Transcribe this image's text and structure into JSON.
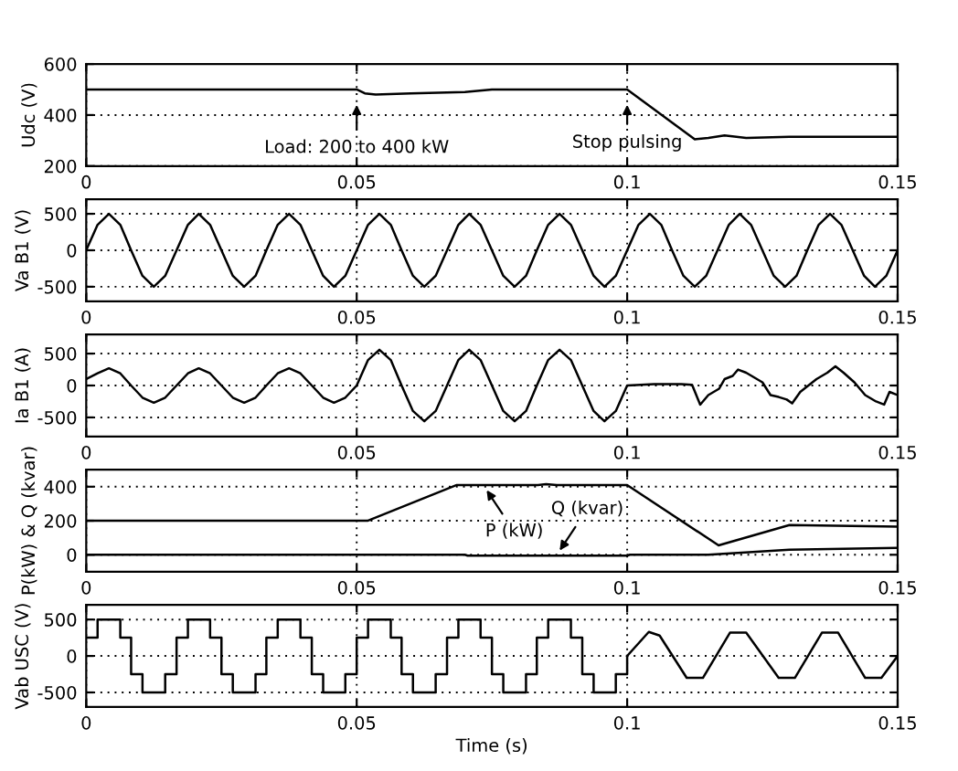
{
  "chart_data": [
    {
      "type": "line",
      "ylabel": "Udc (V)",
      "xlim": [
        0,
        0.15
      ],
      "xticks": [
        0,
        0.05,
        0.1,
        0.15
      ],
      "ylim": [
        200,
        600
      ],
      "yticks": [
        200,
        400,
        600
      ],
      "grid": true,
      "series": [
        {
          "color": "#000000",
          "x": [
            0,
            0.05,
            0.0515,
            0.0535,
            0.06,
            0.07,
            0.075,
            0.1,
            0.1125,
            0.115,
            0.118,
            0.122,
            0.13,
            0.15
          ],
          "values": [
            500,
            500,
            485,
            480,
            485,
            490,
            500,
            500,
            305,
            310,
            320,
            310,
            315,
            315
          ]
        }
      ],
      "annotations": [
        {
          "text": "Load: 200 to 400 kW",
          "x": 0.05,
          "y": 460
        },
        {
          "text": "Stop pulsing",
          "x": 0.1,
          "y": 460
        }
      ]
    },
    {
      "type": "line",
      "ylabel": "Va B1 (V)",
      "xlim": [
        0,
        0.15
      ],
      "xticks": [
        0,
        0.05,
        0.1,
        0.15
      ],
      "ylim": [
        -700,
        700
      ],
      "yticks": [
        -500,
        0,
        500
      ],
      "grid": true,
      "series": [
        {
          "color": "#000000",
          "x": [
            0,
            0.0021,
            0.0042,
            0.0063,
            0.0083,
            0.0104,
            0.0125,
            0.0146,
            0.0167,
            0.0188,
            0.0208,
            0.0229,
            0.025,
            0.0271,
            0.0292,
            0.0313,
            0.0333,
            0.0354,
            0.0375,
            0.0396,
            0.0417,
            0.0438,
            0.0458,
            0.0479,
            0.05,
            0.0521,
            0.0542,
            0.0563,
            0.0583,
            0.0604,
            0.0625,
            0.0646,
            0.0667,
            0.0688,
            0.0708,
            0.0729,
            0.075,
            0.0771,
            0.0792,
            0.0813,
            0.0833,
            0.0854,
            0.0875,
            0.0896,
            0.0917,
            0.0938,
            0.0958,
            0.0979,
            0.1,
            0.1021,
            0.1042,
            0.1063,
            0.1083,
            0.1104,
            0.1125,
            0.1146,
            0.1167,
            0.1188,
            0.1208,
            0.1229,
            0.125,
            0.1271,
            0.1292,
            0.1313,
            0.1333,
            0.1354,
            0.1375,
            0.1396,
            0.1417,
            0.1438,
            0.1458,
            0.1479,
            0.15
          ],
          "values": [
            0,
            350,
            500,
            350,
            0,
            -350,
            -500,
            -350,
            0,
            350,
            500,
            350,
            0,
            -350,
            -500,
            -350,
            0,
            350,
            500,
            350,
            0,
            -350,
            -500,
            -350,
            0,
            350,
            500,
            350,
            0,
            -350,
            -500,
            -350,
            0,
            350,
            500,
            350,
            0,
            -350,
            -500,
            -350,
            0,
            350,
            500,
            350,
            0,
            -350,
            -500,
            -350,
            0,
            350,
            500,
            350,
            0,
            -350,
            -500,
            -350,
            0,
            350,
            500,
            350,
            0,
            -350,
            -500,
            -350,
            0,
            350,
            500,
            350,
            0,
            -350,
            -500,
            -350,
            0
          ]
        }
      ]
    },
    {
      "type": "line",
      "ylabel": "Ia B1 (A)",
      "xlim": [
        0,
        0.15
      ],
      "xticks": [
        0,
        0.05,
        0.1,
        0.15
      ],
      "ylim": [
        -800,
        800
      ],
      "yticks": [
        -500,
        0,
        500
      ],
      "grid": true,
      "series": [
        {
          "color": "#000000",
          "x": [
            0,
            0.0021,
            0.0042,
            0.0063,
            0.0083,
            0.0104,
            0.0125,
            0.0146,
            0.0167,
            0.0188,
            0.0208,
            0.0229,
            0.025,
            0.0271,
            0.0292,
            0.0313,
            0.0333,
            0.0354,
            0.0375,
            0.0396,
            0.0417,
            0.0438,
            0.0458,
            0.0479,
            0.05,
            0.0521,
            0.0542,
            0.0563,
            0.0583,
            0.0604,
            0.0625,
            0.0646,
            0.0667,
            0.0688,
            0.0708,
            0.0729,
            0.075,
            0.0771,
            0.0792,
            0.0813,
            0.0833,
            0.0854,
            0.0875,
            0.0896,
            0.0917,
            0.0938,
            0.0958,
            0.0979,
            0.1,
            0.105,
            0.11,
            0.112,
            0.1135,
            0.115,
            0.117,
            0.118,
            0.1195,
            0.1205,
            0.122,
            0.123,
            0.125,
            0.1265,
            0.128,
            0.1295,
            0.1305,
            0.132,
            0.1335,
            0.135,
            0.137,
            0.1385,
            0.14,
            0.142,
            0.144,
            0.146,
            0.1475,
            0.1485,
            0.15
          ],
          "values": [
            100,
            190,
            270,
            190,
            0,
            -190,
            -270,
            -190,
            0,
            190,
            270,
            190,
            0,
            -190,
            -270,
            -190,
            0,
            190,
            270,
            190,
            0,
            -190,
            -270,
            -190,
            0,
            400,
            560,
            400,
            0,
            -400,
            -560,
            -400,
            0,
            400,
            560,
            400,
            0,
            -400,
            -560,
            -400,
            0,
            400,
            560,
            400,
            0,
            -400,
            -560,
            -400,
            0,
            20,
            20,
            10,
            -300,
            -150,
            -50,
            100,
            150,
            250,
            200,
            150,
            50,
            -150,
            -180,
            -220,
            -280,
            -100,
            0,
            100,
            200,
            300,
            200,
            50,
            -150,
            -250,
            -300,
            -100,
            -150
          ]
        }
      ]
    },
    {
      "type": "line",
      "ylabel": "P(kW) & Q (kvar)",
      "xlim": [
        0,
        0.15
      ],
      "xticks": [
        0,
        0.05,
        0.1,
        0.15
      ],
      "ylim": [
        -100,
        500
      ],
      "yticks": [
        0,
        200,
        400
      ],
      "grid": true,
      "series": [
        {
          "color": "#000000",
          "x": [
            0,
            0.052,
            0.0685,
            0.0835,
            0.085,
            0.087,
            0.1,
            0.1169,
            0.13,
            0.15
          ],
          "values": [
            200,
            200,
            410,
            410,
            415,
            410,
            410,
            55,
            175,
            165
          ]
        },
        {
          "color": "#000000",
          "x": [
            0,
            0.07,
            0.0705,
            0.1,
            0.1005,
            0.115,
            0.13,
            0.15
          ],
          "values": [
            0,
            0,
            -5,
            -5,
            0,
            0,
            30,
            40
          ]
        }
      ],
      "annotations": [
        {
          "text": "P (kW)",
          "x": 0.0735,
          "y": 405
        },
        {
          "text": "Q (kvar)",
          "x": 0.087,
          "y": 0
        }
      ]
    },
    {
      "type": "line",
      "ylabel": "Vab USC (V)",
      "xlabel": "Time (s)",
      "xlim": [
        0,
        0.15
      ],
      "xticks": [
        0,
        0.05,
        0.1,
        0.15
      ],
      "ylim": [
        -700,
        700
      ],
      "yticks": [
        -500,
        0,
        500
      ],
      "grid": true,
      "series": [
        {
          "type": "step",
          "color": "#000000",
          "x": [
            0,
            0.0021,
            0.0042,
            0.0063,
            0.0083,
            0.0104,
            0.0125,
            0.0146,
            0.0167,
            0.0188,
            0.0208,
            0.0229,
            0.025,
            0.0271,
            0.0292,
            0.0313,
            0.0333,
            0.0354,
            0.0375,
            0.0396,
            0.0417,
            0.0438,
            0.0458,
            0.0479,
            0.05,
            0.0521,
            0.0542,
            0.0563,
            0.0583,
            0.0604,
            0.0625,
            0.0646,
            0.0667,
            0.0688,
            0.0708,
            0.0729,
            0.075,
            0.0771,
            0.0792,
            0.0813,
            0.0833,
            0.0854,
            0.0875,
            0.0896,
            0.0917,
            0.0938,
            0.0958,
            0.0979,
            0.1
          ],
          "values": [
            250,
            500,
            500,
            250,
            -250,
            -500,
            -500,
            -250,
            250,
            500,
            500,
            250,
            -250,
            -500,
            -500,
            -250,
            250,
            500,
            500,
            250,
            -250,
            -500,
            -500,
            -250,
            250,
            500,
            500,
            250,
            -250,
            -500,
            -500,
            -250,
            250,
            500,
            500,
            250,
            -250,
            -500,
            -500,
            -250,
            250,
            500,
            500,
            250,
            -250,
            -500,
            -500,
            -250,
            0
          ]
        },
        {
          "color": "#000000",
          "x": [
            0.1,
            0.104,
            0.106,
            0.111,
            0.114,
            0.119,
            0.122,
            0.128,
            0.131,
            0.136,
            0.139,
            0.144,
            0.147,
            0.15
          ],
          "values": [
            0,
            330,
            280,
            -300,
            -300,
            320,
            320,
            -300,
            -300,
            320,
            320,
            -300,
            -300,
            0
          ]
        }
      ]
    }
  ]
}
